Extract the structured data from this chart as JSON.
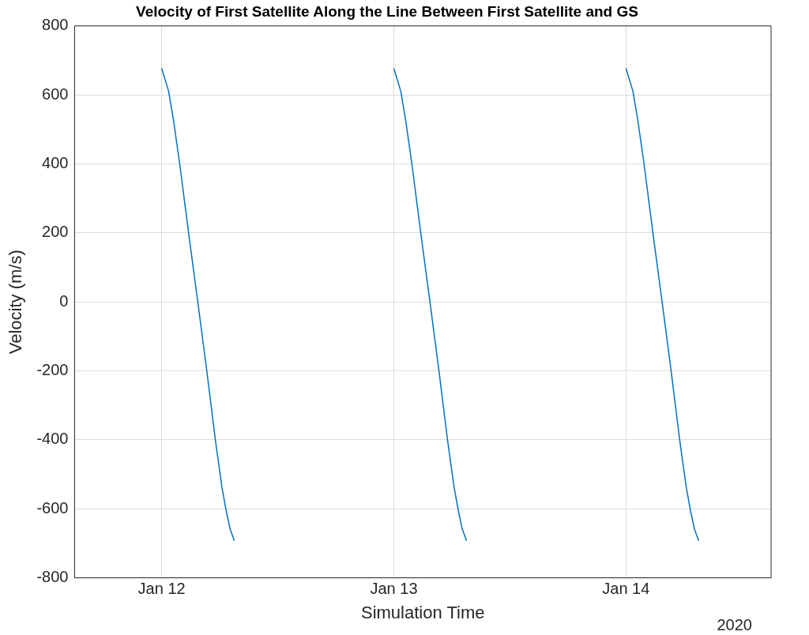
{
  "chart_data": {
    "type": "line",
    "title": "Velocity of First Satellite Along the Line Between First Satellite and GS",
    "xlabel": "Simulation Time",
    "ylabel": "Velocity (m/s)",
    "annotations": [
      "2020"
    ],
    "x": [
      "2020-01-12T00:00",
      "2020-01-12T00:43",
      "2020-01-12T01:13",
      "2020-01-12T01:52",
      "2020-01-12T02:47",
      "2020-01-12T03:44",
      "2020-01-12T04:40",
      "2020-01-12T05:33",
      "2020-01-12T06:14",
      "2020-01-12T06:38",
      "2020-01-12T07:04",
      "2020-01-12T07:31",
      "2020-01-12T12:00",
      "2020-01-13T00:00",
      "2020-01-13T00:43",
      "2020-01-13T01:13",
      "2020-01-13T01:52",
      "2020-01-13T02:47",
      "2020-01-13T03:44",
      "2020-01-13T04:40",
      "2020-01-13T05:33",
      "2020-01-13T06:14",
      "2020-01-13T06:38",
      "2020-01-13T07:04",
      "2020-01-13T07:31",
      "2020-01-13T12:00",
      "2020-01-14T00:00",
      "2020-01-14T00:43",
      "2020-01-14T01:13",
      "2020-01-14T01:52",
      "2020-01-14T02:47",
      "2020-01-14T03:44",
      "2020-01-14T04:40",
      "2020-01-14T05:33",
      "2020-01-14T06:14",
      "2020-01-14T06:38",
      "2020-01-14T07:04",
      "2020-01-14T07:31"
    ],
    "series": [
      {
        "color": "#0072bd",
        "values": [
          677,
          611,
          528,
          400,
          200,
          0,
          -200,
          -400,
          -538,
          -600,
          -658,
          -693,
          null,
          677,
          611,
          528,
          400,
          200,
          0,
          -200,
          -400,
          -538,
          -600,
          -658,
          -693,
          null,
          677,
          611,
          528,
          400,
          200,
          0,
          -200,
          -400,
          -538,
          -600,
          -658,
          -693
        ]
      }
    ],
    "xlim": [
      "2020-01-11T15:00",
      "2020-01-14T15:00"
    ],
    "xticks": [
      {
        "value": "2020-01-12",
        "label": "Jan 12"
      },
      {
        "value": "2020-01-13",
        "label": "Jan 13"
      },
      {
        "value": "2020-01-14",
        "label": "Jan 14"
      }
    ],
    "ylim": [
      -800,
      800
    ],
    "yticks": [
      -800,
      -600,
      -400,
      -200,
      0,
      200,
      400,
      600,
      800
    ],
    "grid": true,
    "legend": false,
    "line_style": "solid",
    "marker": "none"
  }
}
